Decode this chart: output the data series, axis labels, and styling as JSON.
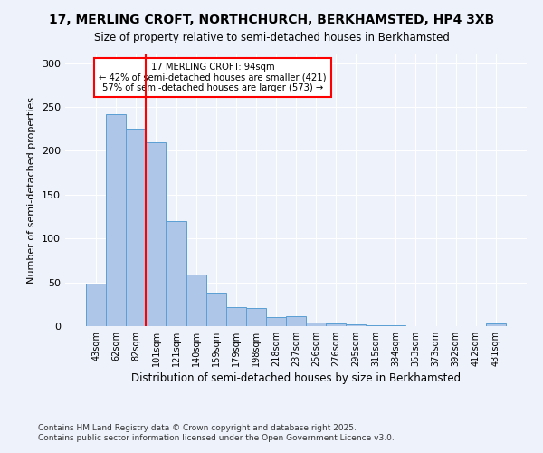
{
  "title": "17, MERLING CROFT, NORTHCHURCH, BERKHAMSTED, HP4 3XB",
  "subtitle": "Size of property relative to semi-detached houses in Berkhamsted",
  "xlabel": "Distribution of semi-detached houses by size in Berkhamsted",
  "ylabel": "Number of semi-detached properties",
  "categories": [
    "43sqm",
    "62sqm",
    "82sqm",
    "101sqm",
    "121sqm",
    "140sqm",
    "159sqm",
    "179sqm",
    "198sqm",
    "218sqm",
    "237sqm",
    "256sqm",
    "276sqm",
    "295sqm",
    "315sqm",
    "334sqm",
    "353sqm",
    "373sqm",
    "392sqm",
    "412sqm",
    "431sqm"
  ],
  "values": [
    49,
    242,
    225,
    210,
    120,
    59,
    38,
    22,
    21,
    10,
    11,
    4,
    3,
    2,
    1,
    1,
    0,
    0,
    0,
    0,
    3
  ],
  "bar_color": "#aec6e8",
  "bar_edge_color": "#5a9fd4",
  "vline_color": "red",
  "annotation_title": "17 MERLING CROFT: 94sqm",
  "annotation_line1": "← 42% of semi-detached houses are smaller (421)",
  "annotation_line2": "57% of semi-detached houses are larger (573) →",
  "annotation_box_color": "white",
  "annotation_box_edge": "red",
  "ylim": [
    0,
    310
  ],
  "yticks": [
    0,
    50,
    100,
    150,
    200,
    250,
    300
  ],
  "footnote1": "Contains HM Land Registry data © Crown copyright and database right 2025.",
  "footnote2": "Contains public sector information licensed under the Open Government Licence v3.0.",
  "bg_color": "#eef2fa"
}
